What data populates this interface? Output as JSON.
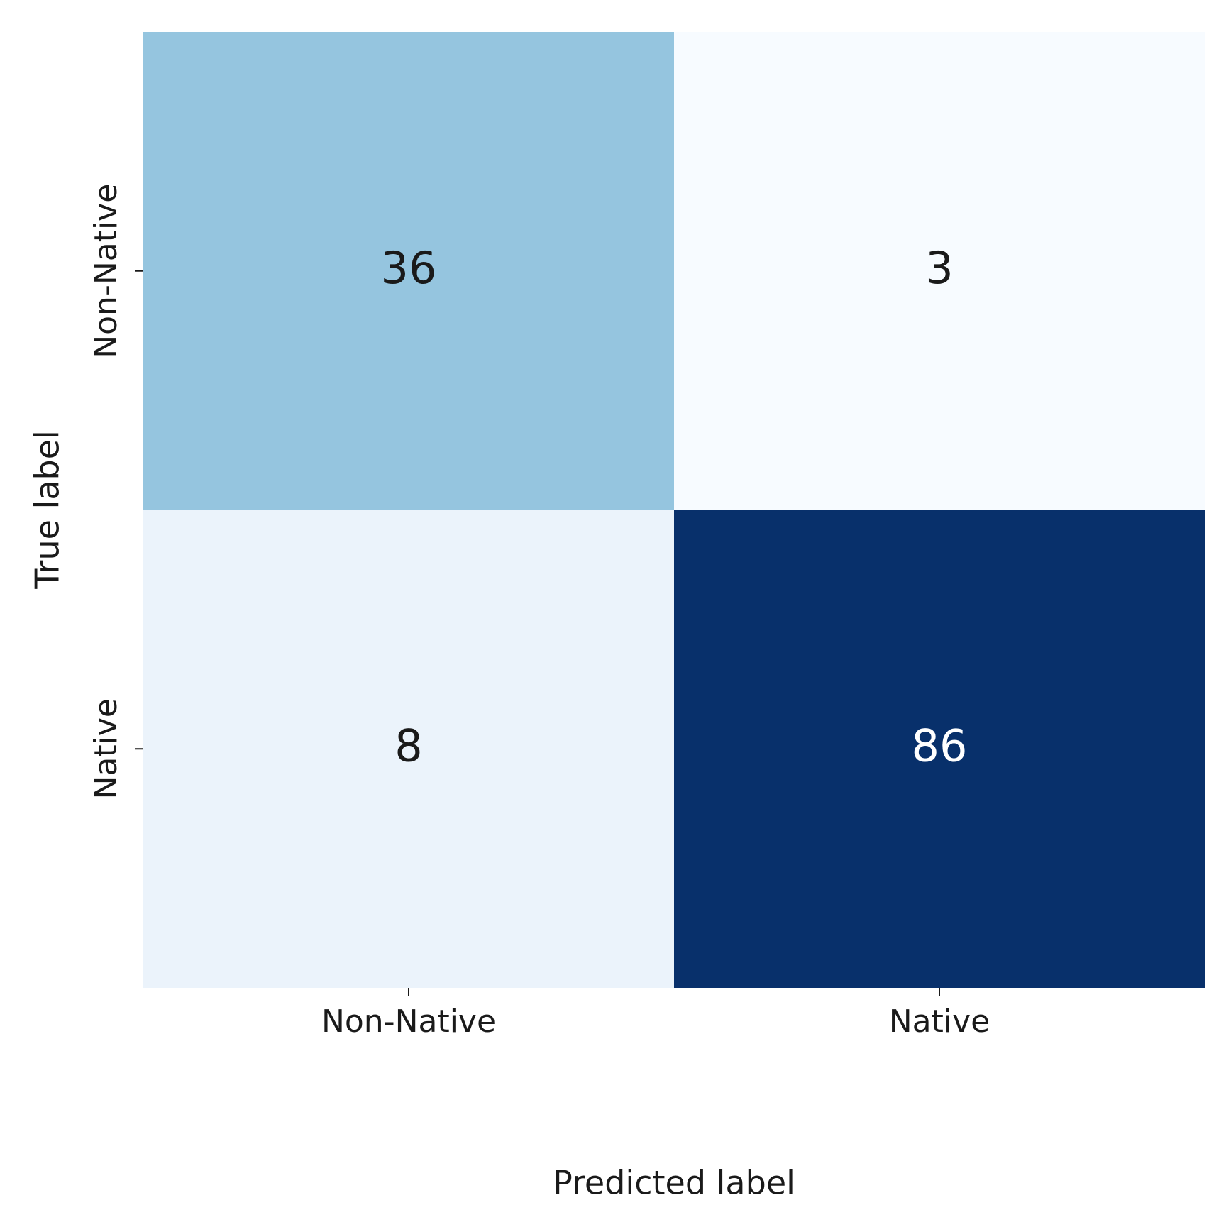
{
  "chart_data": {
    "type": "heatmap",
    "x_label": "Predicted label",
    "y_label": "True label",
    "x_categories": [
      "Non-Native",
      "Native"
    ],
    "y_categories": [
      "Non-Native",
      "Native"
    ],
    "values": [
      [
        36,
        3
      ],
      [
        8,
        86
      ]
    ],
    "colormap": "Blues"
  }
}
